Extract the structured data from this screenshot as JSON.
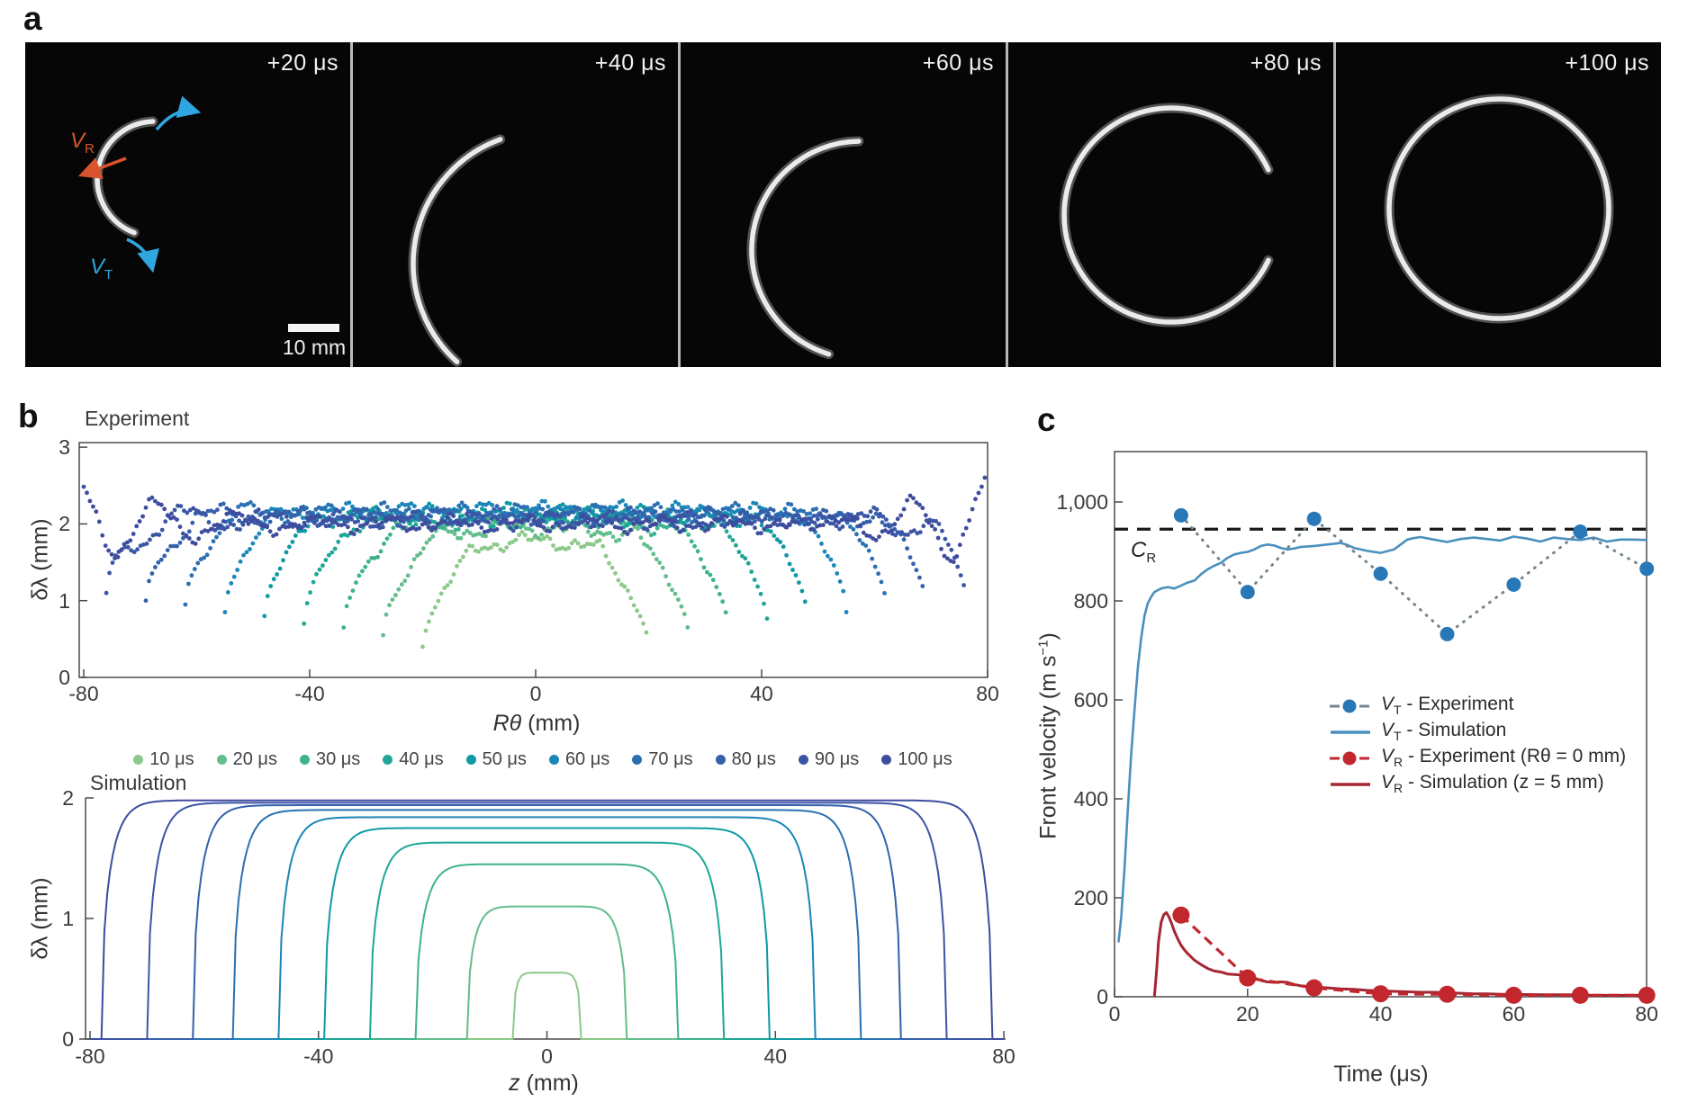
{
  "panel_a": {
    "label": "a",
    "frames": [
      {
        "timestamp": "+20 μs"
      },
      {
        "timestamp": "+40 μs"
      },
      {
        "timestamp": "+60 μs"
      },
      {
        "timestamp": "+80 μs"
      },
      {
        "timestamp": "+100 μs"
      }
    ],
    "scale_bar_label": "10 mm",
    "vr_label": {
      "base": "V",
      "sub": "R"
    },
    "vt_label": {
      "base": "V",
      "sub": "T"
    },
    "colors": {
      "vr": "#d9542e",
      "vt": "#2fa6e0",
      "ring": "#ebebeb",
      "background": "#060606"
    }
  },
  "panel_b": {
    "label": "b",
    "experiment": {
      "title": "Experiment",
      "ylabel": "δλ (mm)",
      "xlabel_var": "Rθ",
      "xlabel_unit": " (mm)",
      "yticks": [
        "3",
        "2",
        "1",
        "0"
      ],
      "xticks": [
        "-80",
        "-40",
        "0",
        "40",
        "80"
      ]
    },
    "legend": [
      {
        "label": "10 μs",
        "color": "#8cc98a"
      },
      {
        "label": "20 μs",
        "color": "#63bd8c"
      },
      {
        "label": "30 μs",
        "color": "#3eb28e"
      },
      {
        "label": "40 μs",
        "color": "#1ea796"
      },
      {
        "label": "50 μs",
        "color": "#0f99a3"
      },
      {
        "label": "60 μs",
        "color": "#1b86b8"
      },
      {
        "label": "70 μs",
        "color": "#2a70b2"
      },
      {
        "label": "80 μs",
        "color": "#3461ab"
      },
      {
        "label": "90 μs",
        "color": "#3b55a5"
      },
      {
        "label": "100 μs",
        "color": "#3e4c9e"
      }
    ],
    "simulation": {
      "title": "Simulation",
      "ylabel": "δλ (mm)",
      "xlabel_var": "z",
      "xlabel_unit": " (mm)",
      "yticks": [
        "2",
        "1",
        "0"
      ],
      "xticks": [
        "-80",
        "-40",
        "0",
        "40",
        "80"
      ]
    }
  },
  "panel_c": {
    "label": "c",
    "ylabel": {
      "pre": "Front velocity (m s",
      "sup": "−1",
      "post": ")"
    },
    "xlabel": "Time (μs)",
    "yticks": [
      "1,000",
      "800",
      "600",
      "400",
      "200",
      "0"
    ],
    "xticks": [
      "0",
      "20",
      "40",
      "60",
      "80"
    ],
    "cr_label": {
      "base": "C",
      "sub": "R"
    },
    "legend": [
      {
        "base": "V",
        "sub": "T",
        "rest": " - Experiment",
        "marker": "dot-dash",
        "color": "#2878b8",
        "line_color": "#75858f"
      },
      {
        "base": "V",
        "sub": "T",
        "rest": " - Simulation",
        "marker": "line",
        "color": "#4a90bf",
        "line_color": "#4a90bf"
      },
      {
        "base": "V",
        "sub": "R",
        "rest": " - Experiment (Rθ = 0 mm)",
        "marker": "dot-dash",
        "color": "#c1272d",
        "line_color": "#c1272d"
      },
      {
        "base": "V",
        "sub": "R",
        "rest": " - Simulation (z = 5 mm)",
        "marker": "line",
        "color": "#a62633",
        "line_color": "#a62633"
      }
    ]
  },
  "chart_data": [
    {
      "type": "scatter",
      "title": "Experiment",
      "xlabel": "Rθ (mm)",
      "ylabel": "δλ (mm)",
      "xlim": [
        -80,
        80
      ],
      "ylim": [
        0,
        3
      ],
      "grid": false,
      "legend_position": "below",
      "description": "Crack-opening profiles δλ versus arc coordinate Rθ at ten times; each series is an arch that widens and flattens with time",
      "series": [
        {
          "name": "10 μs",
          "color": "#8cc98a",
          "span": 20,
          "plateau": 1.78,
          "edge_min": 0.4,
          "dome": 0.3,
          "spike": 0
        },
        {
          "name": "20 μs",
          "color": "#63bd8c",
          "span": 27,
          "plateau": 1.95,
          "edge_min": 0.55,
          "dome": 0.22,
          "spike": 0
        },
        {
          "name": "30 μs",
          "color": "#3eb28e",
          "span": 34,
          "plateau": 2.05,
          "edge_min": 0.65,
          "dome": 0.18,
          "spike": 0
        },
        {
          "name": "40 μs",
          "color": "#1ea796",
          "span": 41,
          "plateau": 2.1,
          "edge_min": 0.7,
          "dome": 0.14,
          "spike": 0
        },
        {
          "name": "50 μs",
          "color": "#0f99a3",
          "span": 48,
          "plateau": 2.15,
          "edge_min": 0.8,
          "dome": 0.1,
          "spike": 0
        },
        {
          "name": "60 μs",
          "color": "#1b86b8",
          "span": 55,
          "plateau": 2.18,
          "edge_min": 0.85,
          "dome": 0.05,
          "spike": 0.12
        },
        {
          "name": "70 μs",
          "color": "#2a70b2",
          "span": 62,
          "plateau": 2.15,
          "edge_min": 0.95,
          "dome": 0,
          "spike": 0.22
        },
        {
          "name": "80 μs",
          "color": "#3461ab",
          "span": 69,
          "plateau": 2.1,
          "edge_min": 1.0,
          "dome": 0,
          "spike": 0.32
        },
        {
          "name": "90 μs",
          "color": "#3b55a5",
          "span": 76,
          "plateau": 2.05,
          "edge_min": 1.1,
          "dome": 0,
          "spike": 0.45
        },
        {
          "name": "100 μs",
          "color": "#3e4c9e",
          "span": 80,
          "plateau": 2.0,
          "edge_min": 1.9,
          "dome": 0,
          "spike": 0.6
        }
      ]
    },
    {
      "type": "line",
      "title": "Simulation",
      "xlabel": "z (mm)",
      "ylabel": "δλ (mm)",
      "xlim": [
        -80,
        80
      ],
      "ylim": [
        0,
        2
      ],
      "grid": false,
      "description": "Nested flat-top opening profiles δλ(z); plateau height and half-width grow with time",
      "series": [
        {
          "name": "10 μs",
          "color": "#8cc98a",
          "span": 6,
          "plateau": 0.55
        },
        {
          "name": "20 μs",
          "color": "#63bd8c",
          "span": 14,
          "plateau": 1.1
        },
        {
          "name": "30 μs",
          "color": "#3eb28e",
          "span": 23,
          "plateau": 1.45
        },
        {
          "name": "40 μs",
          "color": "#1ea796",
          "span": 31,
          "plateau": 1.63
        },
        {
          "name": "50 μs",
          "color": "#0f99a3",
          "span": 39,
          "plateau": 1.75
        },
        {
          "name": "60 μs",
          "color": "#1b86b8",
          "span": 47,
          "plateau": 1.84
        },
        {
          "name": "70 μs",
          "color": "#2a70b2",
          "span": 55,
          "plateau": 1.9
        },
        {
          "name": "80 μs",
          "color": "#3461ab",
          "span": 62,
          "plateau": 1.94
        },
        {
          "name": "90 μs",
          "color": "#3b55a5",
          "span": 70,
          "plateau": 1.96
        },
        {
          "name": "100 μs",
          "color": "#3e4c9e",
          "span": 78,
          "plateau": 1.98
        }
      ]
    },
    {
      "type": "line",
      "title": "Front velocity",
      "xlabel": "Time (μs)",
      "ylabel": "Front velocity (m s−1)",
      "xlim": [
        0,
        80
      ],
      "ylim": [
        0,
        1100
      ],
      "grid": false,
      "legend_position": "inside right",
      "cr_value": 945,
      "series": [
        {
          "name": "VT - Experiment",
          "style": "dots-dotted",
          "color": "#2878b8",
          "connector": "#75858f",
          "x": [
            10,
            20,
            30,
            40,
            50,
            60,
            70,
            80
          ],
          "y": [
            973,
            818,
            966,
            855,
            733,
            833,
            940,
            865
          ]
        },
        {
          "name": "VT - Simulation",
          "style": "line",
          "color": "#4a90bf",
          "points": [
            [
              0.6,
              110
            ],
            [
              1,
              160
            ],
            [
              1.5,
              260
            ],
            [
              2,
              380
            ],
            [
              2.5,
              490
            ],
            [
              3,
              580
            ],
            [
              3.5,
              665
            ],
            [
              4,
              725
            ],
            [
              4.5,
              770
            ],
            [
              5,
              795
            ],
            [
              5.5,
              808
            ],
            [
              6,
              818
            ],
            [
              7,
              825
            ],
            [
              8,
              828
            ],
            [
              9,
              825
            ],
            [
              10,
              831
            ],
            [
              11,
              837
            ],
            [
              12,
              841
            ],
            [
              13,
              854
            ],
            [
              14,
              864
            ],
            [
              15,
              871
            ],
            [
              16,
              877
            ],
            [
              17,
              887
            ],
            [
              18,
              894
            ],
            [
              19,
              897
            ],
            [
              20,
              899
            ],
            [
              21,
              904
            ],
            [
              22,
              911
            ],
            [
              23,
              914
            ],
            [
              24,
              912
            ],
            [
              25,
              907
            ],
            [
              26,
              904
            ],
            [
              27,
              906
            ],
            [
              28,
              909
            ],
            [
              30,
              911
            ],
            [
              32,
              914
            ],
            [
              34,
              917
            ],
            [
              35,
              913
            ],
            [
              36,
              907
            ],
            [
              38,
              901
            ],
            [
              40,
              897
            ],
            [
              42,
              904
            ],
            [
              43,
              914
            ],
            [
              44,
              924
            ],
            [
              45,
              927
            ],
            [
              46,
              929
            ],
            [
              48,
              924
            ],
            [
              50,
              919
            ],
            [
              52,
              925
            ],
            [
              54,
              928
            ],
            [
              56,
              925
            ],
            [
              58,
              922
            ],
            [
              60,
              930
            ],
            [
              62,
              926
            ],
            [
              64,
              920
            ],
            [
              66,
              928
            ],
            [
              68,
              925
            ],
            [
              70,
              923
            ],
            [
              72,
              928
            ],
            [
              74,
              920
            ],
            [
              76,
              924
            ],
            [
              78,
              924
            ],
            [
              80,
              923
            ]
          ]
        },
        {
          "name": "VR - Experiment (Rθ = 0 mm)",
          "style": "dots-dashed",
          "color": "#c1272d",
          "connector": "#c1272d",
          "x": [
            10,
            20,
            30,
            40,
            50,
            60,
            70,
            80
          ],
          "y": [
            165,
            38,
            18,
            6,
            5,
            3,
            3,
            3
          ]
        },
        {
          "name": "VR - Simulation (z = 5 mm)",
          "style": "line",
          "color": "#a62633",
          "points": [
            [
              6,
              0
            ],
            [
              6.3,
              50
            ],
            [
              6.6,
              110
            ],
            [
              7,
              150
            ],
            [
              7.4,
              166
            ],
            [
              7.8,
              170
            ],
            [
              8.2,
              161
            ],
            [
              8.6,
              147
            ],
            [
              9,
              132
            ],
            [
              9.5,
              117
            ],
            [
              10,
              104
            ],
            [
              10.5,
              95
            ],
            [
              11,
              87
            ],
            [
              12,
              74
            ],
            [
              13,
              65
            ],
            [
              14,
              57
            ],
            [
              15,
              52
            ],
            [
              16,
              50
            ],
            [
              17,
              46
            ],
            [
              18,
              45
            ],
            [
              19,
              44
            ],
            [
              20,
              42
            ],
            [
              21,
              38
            ],
            [
              22,
              33
            ],
            [
              23,
              30
            ],
            [
              24,
              29
            ],
            [
              25,
              30
            ],
            [
              26,
              29
            ],
            [
              27,
              25
            ],
            [
              28,
              22
            ],
            [
              29,
              21
            ],
            [
              30,
              20
            ],
            [
              32,
              18
            ],
            [
              34,
              16
            ],
            [
              36,
              15
            ],
            [
              38,
              13
            ],
            [
              40,
              12
            ],
            [
              42,
              11
            ],
            [
              44,
              10
            ],
            [
              46,
              9
            ],
            [
              48,
              9
            ],
            [
              50,
              8
            ],
            [
              52,
              7
            ],
            [
              54,
              6
            ],
            [
              56,
              6
            ],
            [
              58,
              5
            ],
            [
              60,
              5
            ],
            [
              64,
              4
            ],
            [
              68,
              4
            ],
            [
              72,
              3
            ],
            [
              76,
              3
            ],
            [
              80,
              3
            ]
          ]
        }
      ]
    }
  ]
}
